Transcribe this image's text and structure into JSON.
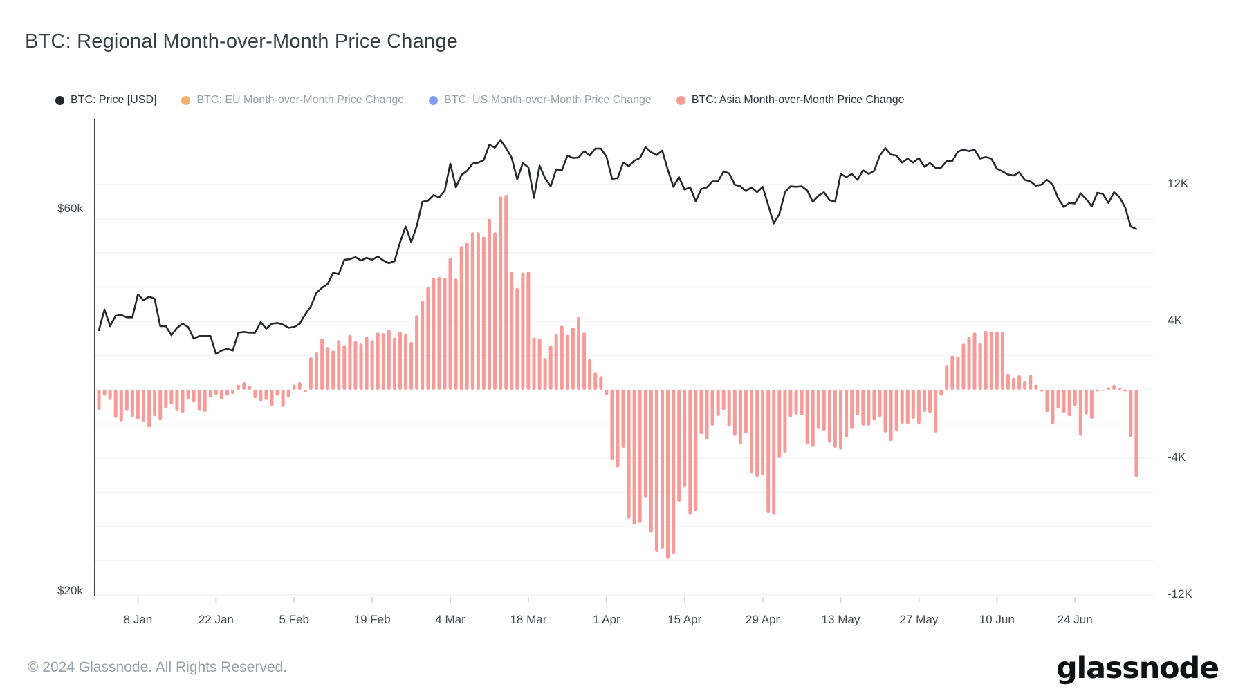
{
  "title": "BTC: Regional Month-over-Month Price Change",
  "legend": [
    {
      "label": "BTC: Price [USD]",
      "color": "#232528",
      "disabled": false
    },
    {
      "label": "BTC: EU Month-over-Month Price Change",
      "color": "#f3b26a",
      "disabled": true
    },
    {
      "label": "BTC: US Month-over-Month Price Change",
      "color": "#7e9cf2",
      "disabled": true
    },
    {
      "label": "BTC: Asia Month-over-Month Price Change",
      "color": "#f79b99",
      "disabled": false
    }
  ],
  "footer": {
    "copyright": "© 2024 Glassnode. All Rights Reserved.",
    "brand": "glassnode"
  },
  "chart_data": {
    "type": "mixed",
    "x_start_date": "2024-01-01",
    "x_tick_labels": [
      {
        "label": "8 Jan",
        "day": 7
      },
      {
        "label": "22 Jan",
        "day": 21
      },
      {
        "label": "5 Feb",
        "day": 35
      },
      {
        "label": "19 Feb",
        "day": 49
      },
      {
        "label": "4 Mar",
        "day": 63
      },
      {
        "label": "18 Mar",
        "day": 77
      },
      {
        "label": "1 Apr",
        "day": 91
      },
      {
        "label": "15 Apr",
        "day": 105
      },
      {
        "label": "29 Apr",
        "day": 119
      },
      {
        "label": "13 May",
        "day": 133
      },
      {
        "label": "27 May",
        "day": 147
      },
      {
        "label": "10 Jun",
        "day": 161
      },
      {
        "label": "24 Jun",
        "day": 175
      }
    ],
    "left_axis": {
      "scale": "log",
      "unit": "USD",
      "labels": [
        {
          "text": "$60k",
          "value": 60
        },
        {
          "text": "$20k",
          "value": 20
        }
      ]
    },
    "right_axis": {
      "scale": "linear",
      "unit": "USD",
      "gridline_step_k": 2,
      "range_k": [
        -12,
        12
      ],
      "labels": [
        {
          "text": "12K",
          "value": 12
        },
        {
          "text": "4K",
          "value": 4
        },
        {
          "text": "-4K",
          "value": -4
        },
        {
          "text": "-12K",
          "value": -12
        }
      ]
    },
    "series": [
      {
        "name": "BTC: Price [USD]",
        "type": "line",
        "axis": "left",
        "color": "#26282b",
        "values_usd_k": [
          42.3,
          44.9,
          42.8,
          44.1,
          44.2,
          43.9,
          43.9,
          46.9,
          46.1,
          46.6,
          46.3,
          42.8,
          42.8,
          41.7,
          42.6,
          43.1,
          42.7,
          41.3,
          41.6,
          41.6,
          41.6,
          39.5,
          39.9,
          40.1,
          39.9,
          42.0,
          42.1,
          42.0,
          42.0,
          43.3,
          42.5,
          43.1,
          43.2,
          43.0,
          42.6,
          42.7,
          43.1,
          44.3,
          45.3,
          47.1,
          47.8,
          48.3,
          49.9,
          49.7,
          51.8,
          51.9,
          52.2,
          51.7,
          52.1,
          51.8,
          52.3,
          51.7,
          51.3,
          51.6,
          54.5,
          57.0,
          54.5,
          57.1,
          61.2,
          61.4,
          62.4,
          62.0,
          63.2,
          68.3,
          63.8,
          66.1,
          66.9,
          68.3,
          68.5,
          69.0,
          72.1,
          71.5,
          73.1,
          71.4,
          69.5,
          65.3,
          68.4,
          67.6,
          61.9,
          67.9,
          65.5,
          64.0,
          67.2,
          67.0,
          69.9,
          69.4,
          69.5,
          70.8,
          69.9,
          71.3,
          71.3,
          69.7,
          65.4,
          65.5,
          68.5,
          67.8,
          68.9,
          69.4,
          71.6,
          70.6,
          70.0,
          70.9,
          67.1,
          63.9,
          65.7,
          63.4,
          63.8,
          61.3,
          63.5,
          63.8,
          64.9,
          64.9,
          66.8,
          66.4,
          64.3,
          64.0,
          63.1,
          63.8,
          62.9,
          63.9,
          60.6,
          57.5,
          59.1,
          62.9,
          64.0,
          63.9,
          64.0,
          63.2,
          61.2,
          62.3,
          62.9,
          61.5,
          61.2,
          66.3,
          65.7,
          66.3,
          65.2,
          67.0,
          66.3,
          66.9,
          69.9,
          71.4,
          70.1,
          69.9,
          68.5,
          69.3,
          68.5,
          69.4,
          67.7,
          68.4,
          67.5,
          67.5,
          68.8,
          68.8,
          70.7,
          71.1,
          70.8,
          71.1,
          69.3,
          69.6,
          69.3,
          67.3,
          66.8,
          66.2,
          66.0,
          66.6,
          65.2,
          64.9,
          64.1,
          64.3,
          65.2,
          64.3,
          61.8,
          60.3,
          61.0,
          60.9,
          62.7,
          61.7,
          60.4,
          62.8,
          62.6,
          61.0,
          62.9,
          62.0,
          60.2,
          57.0,
          56.6
        ]
      },
      {
        "name": "BTC: EU Month-over-Month Price Change",
        "type": "bar",
        "axis": "right",
        "color": "#f3b26a",
        "hidden": true,
        "values_usd_k": []
      },
      {
        "name": "BTC: US Month-over-Month Price Change",
        "type": "bar",
        "axis": "right",
        "color": "#7e9cf2",
        "hidden": true,
        "values_usd_k": []
      },
      {
        "name": "BTC: Asia Month-over-Month Price Change",
        "type": "bar",
        "axis": "right",
        "color": "#f79b99",
        "values_usd_k": [
          -1.2,
          -0.35,
          -0.6,
          -1.65,
          -1.85,
          -1.25,
          -1.6,
          -1.75,
          -1.9,
          -2.2,
          -1.55,
          -1.8,
          -1.1,
          -0.85,
          -1.25,
          -1.35,
          -0.55,
          -0.75,
          -1.25,
          -1.3,
          -0.45,
          -0.3,
          -0.55,
          -0.35,
          -0.25,
          0.3,
          0.45,
          0.25,
          -0.5,
          -0.7,
          -0.6,
          -0.95,
          -0.35,
          -1.0,
          -0.45,
          0.3,
          0.45,
          -0.15,
          1.9,
          2.2,
          3.0,
          2.5,
          2.3,
          2.9,
          2.6,
          3.2,
          2.85,
          2.7,
          3.1,
          2.9,
          3.35,
          3.3,
          3.5,
          3.05,
          3.4,
          3.25,
          2.8,
          4.35,
          5.2,
          6.0,
          6.55,
          6.6,
          6.55,
          7.7,
          6.5,
          8.4,
          8.6,
          9.2,
          9.2,
          8.95,
          10.0,
          9.2,
          11.3,
          11.4,
          6.9,
          5.95,
          6.85,
          6.9,
          3.05,
          3.0,
          1.85,
          2.6,
          3.25,
          3.75,
          3.2,
          3.65,
          4.25,
          3.35,
          1.8,
          1.0,
          0.8,
          -0.3,
          -4.1,
          -4.55,
          -3.4,
          -7.55,
          -7.9,
          -7.8,
          -6.3,
          -8.35,
          -9.5,
          -9.3,
          -9.9,
          -9.6,
          -6.55,
          -5.7,
          -7.3,
          -7.1,
          -2.6,
          -2.9,
          -2.1,
          -1.55,
          -1.2,
          -2.15,
          -2.7,
          -3.2,
          -2.55,
          -4.9,
          -5.1,
          -5.0,
          -7.2,
          -7.3,
          -4.0,
          -3.7,
          -1.6,
          -1.45,
          -1.5,
          -3.2,
          -3.35,
          -2.3,
          -2.4,
          -3.1,
          -3.4,
          -3.5,
          -2.8,
          -2.3,
          -1.5,
          -2.1,
          -2.1,
          -1.8,
          -1.6,
          -2.5,
          -3.0,
          -2.4,
          -2.0,
          -2.0,
          -1.7,
          -2.0,
          -1.3,
          -1.35,
          -2.5,
          -0.35,
          1.45,
          2.0,
          1.95,
          2.7,
          3.1,
          3.35,
          2.75,
          3.45,
          3.4,
          3.4,
          3.4,
          0.95,
          0.7,
          0.85,
          0.5,
          0.9,
          0.3,
          -0.1,
          -1.3,
          -2.0,
          -1.1,
          -1.35,
          -1.55,
          -0.95,
          -2.7,
          -1.45,
          -1.7,
          -0.1,
          -0.05,
          0.15,
          0.3,
          0.1,
          -0.1,
          -2.75,
          -5.1
        ]
      }
    ]
  }
}
